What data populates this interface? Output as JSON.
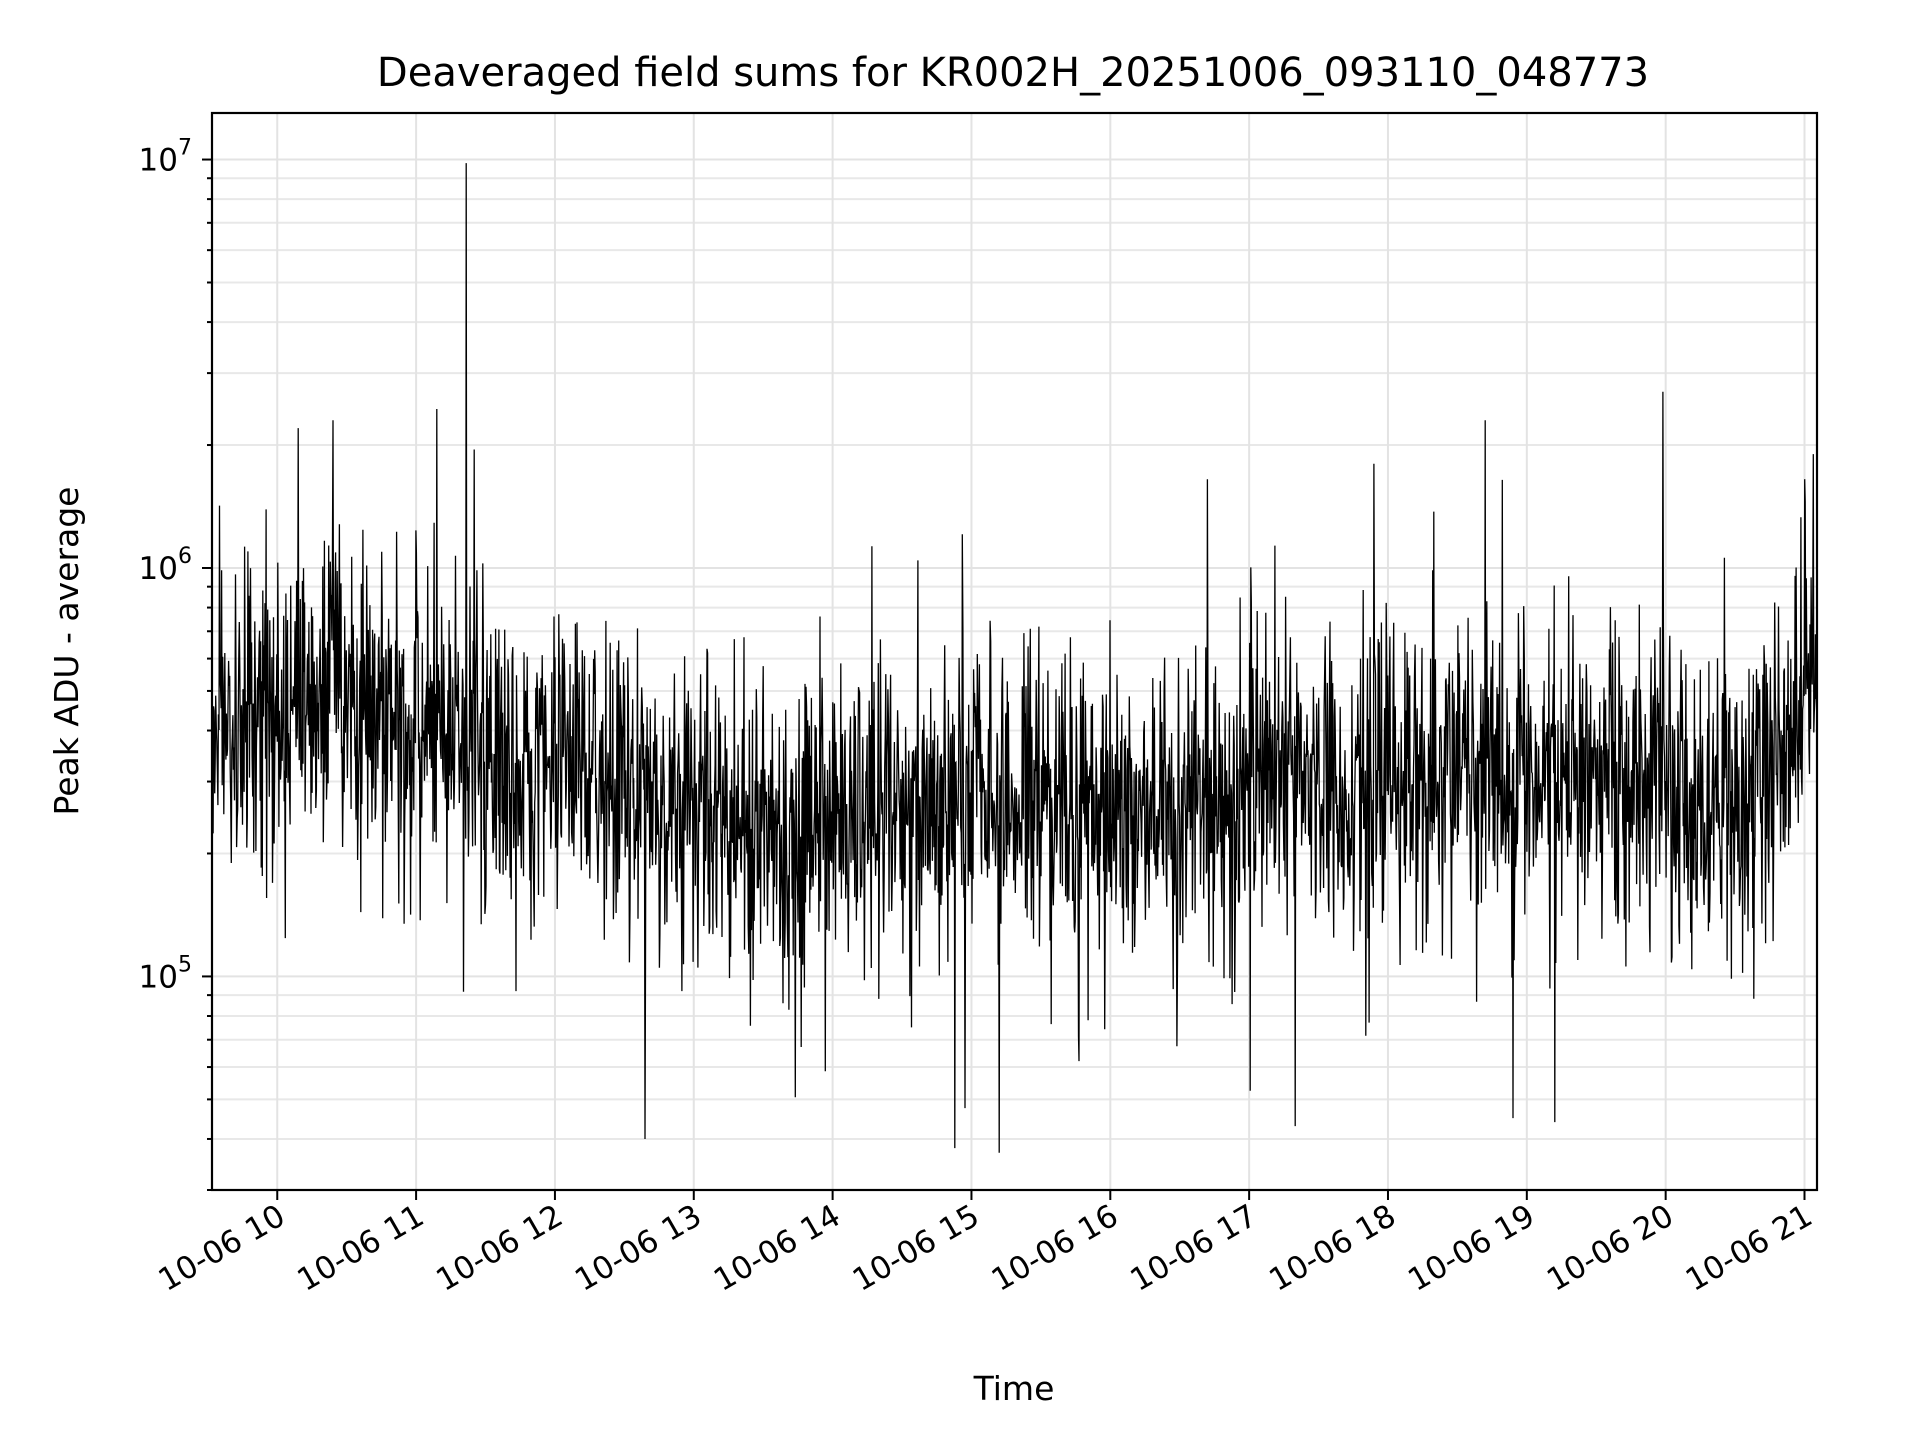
{
  "chart_data": {
    "type": "line",
    "title": "Deaveraged field sums for KR002H_20251006_093110_048773",
    "xlabel": "Time",
    "ylabel": "Peak ADU - average",
    "yscale": "log",
    "ylim": [
      30000,
      13000000
    ],
    "xlim_hours": [
      9.53,
      21.09
    ],
    "grid": true,
    "line_color": "#000000",
    "x_ticks": [
      {
        "label": "10-06 10",
        "hour": 10
      },
      {
        "label": "10-06 11",
        "hour": 11
      },
      {
        "label": "10-06 12",
        "hour": 12
      },
      {
        "label": "10-06 13",
        "hour": 13
      },
      {
        "label": "10-06 14",
        "hour": 14
      },
      {
        "label": "10-06 15",
        "hour": 15
      },
      {
        "label": "10-06 16",
        "hour": 16
      },
      {
        "label": "10-06 17",
        "hour": 17
      },
      {
        "label": "10-06 18",
        "hour": 18
      },
      {
        "label": "10-06 19",
        "hour": 19
      },
      {
        "label": "10-06 20",
        "hour": 20
      },
      {
        "label": "10-06 21",
        "hour": 21
      }
    ],
    "y_ticks": [
      {
        "base": "10",
        "exp": "5",
        "value": 100000
      },
      {
        "base": "10",
        "exp": "6",
        "value": 1000000
      },
      {
        "base": "10",
        "exp": "7",
        "value": 10000000
      }
    ],
    "series": [
      {
        "name": "deaveraged field sums",
        "start_hour": 9.53,
        "end_hour": 21.09,
        "n_points": 3000,
        "typical_range": [
          100000,
          1000000
        ],
        "baseline_trend": [
          {
            "hour": 9.53,
            "value": 380000
          },
          {
            "hour": 10.2,
            "value": 520000
          },
          {
            "hour": 10.8,
            "value": 420000
          },
          {
            "hour": 11.5,
            "value": 340000
          },
          {
            "hour": 12.5,
            "value": 300000
          },
          {
            "hour": 13.5,
            "value": 230000
          },
          {
            "hour": 14.5,
            "value": 260000
          },
          {
            "hour": 15.5,
            "value": 280000
          },
          {
            "hour": 16.5,
            "value": 250000
          },
          {
            "hour": 17.5,
            "value": 300000
          },
          {
            "hour": 18.5,
            "value": 310000
          },
          {
            "hour": 19.5,
            "value": 300000
          },
          {
            "hour": 20.6,
            "value": 260000
          },
          {
            "hour": 21.09,
            "value": 600000
          }
        ],
        "spikes": [
          {
            "hour": 11.36,
            "value": 9800000
          },
          {
            "hour": 10.15,
            "value": 2200000
          },
          {
            "hour": 10.4,
            "value": 2300000
          },
          {
            "hour": 11.15,
            "value": 2450000
          },
          {
            "hour": 11.42,
            "value": 1950000
          },
          {
            "hour": 18.7,
            "value": 2300000
          },
          {
            "hour": 19.98,
            "value": 2700000
          },
          {
            "hour": 17.9,
            "value": 1800000
          },
          {
            "hour": 16.7,
            "value": 1650000
          },
          {
            "hour": 21.0,
            "value": 1650000
          }
        ],
        "dips": [
          {
            "hour": 12.65,
            "value": 40000
          },
          {
            "hour": 14.88,
            "value": 38000
          },
          {
            "hour": 15.2,
            "value": 37000
          },
          {
            "hour": 17.33,
            "value": 43000
          },
          {
            "hour": 18.9,
            "value": 45000
          },
          {
            "hour": 19.2,
            "value": 44000
          }
        ]
      }
    ]
  }
}
